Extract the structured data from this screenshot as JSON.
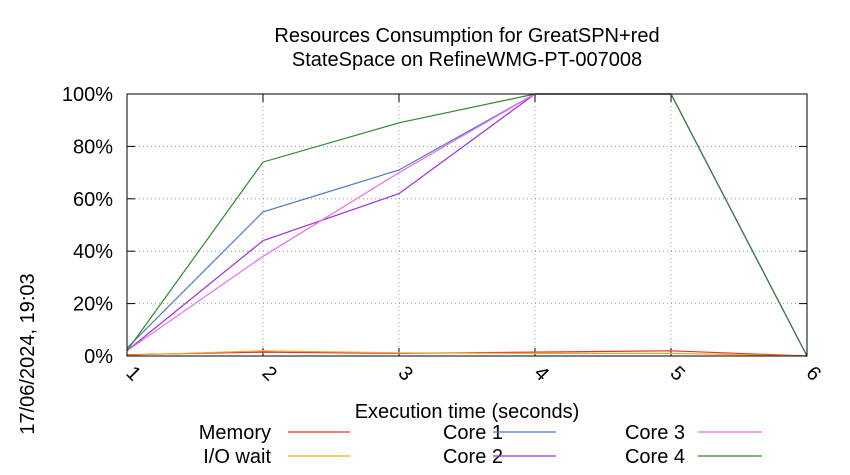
{
  "chart_data": {
    "type": "line",
    "title": [
      "Resources Consumption for GreatSPN+red",
      "StateSpace on RefineWMG-PT-007008"
    ],
    "xlabel": "Execution time (seconds)",
    "ylabel": "",
    "timestamp": "17/06/2024, 19:03",
    "x": [
      1,
      2,
      3,
      4,
      5,
      6
    ],
    "x_tick_labels": [
      "1",
      "2",
      "3",
      "4",
      "5",
      "6"
    ],
    "xlim": [
      1,
      6
    ],
    "ylim": [
      0,
      100
    ],
    "y_ticks": [
      0,
      20,
      40,
      60,
      80,
      100
    ],
    "y_tick_labels": [
      "0%",
      "20%",
      "40%",
      "60%",
      "80%",
      "100%"
    ],
    "grid": true,
    "legend_position": "bottom",
    "series": [
      {
        "name": "Memory",
        "color": "#e8322d",
        "values": [
          0.5,
          1.5,
          1.0,
          1.5,
          2.0,
          0
        ]
      },
      {
        "name": "I/O wait",
        "color": "#f5a623",
        "values": [
          0.3,
          2.0,
          1.2,
          1.0,
          1.0,
          0
        ]
      },
      {
        "name": "Core 1",
        "color": "#4a78c8",
        "values": [
          3,
          55,
          71,
          100,
          100,
          0
        ]
      },
      {
        "name": "Core 2",
        "color": "#9b30d9",
        "values": [
          2,
          44,
          62,
          100,
          100,
          0
        ]
      },
      {
        "name": "Core 3",
        "color": "#ee66ee",
        "values": [
          2,
          38,
          70,
          100,
          100,
          0
        ]
      },
      {
        "name": "Core 4",
        "color": "#2e8b2e",
        "values": [
          2,
          74,
          89,
          100,
          100,
          0
        ]
      }
    ]
  }
}
